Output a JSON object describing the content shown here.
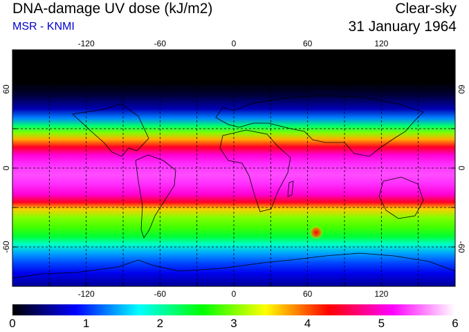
{
  "header": {
    "title": "DNA-damage UV dose (kJ/m2)",
    "credit": "MSR - KNMI",
    "condition": "Clear-sky",
    "date": "31 January 1964"
  },
  "map": {
    "projection": "equirectangular",
    "lon_range": [
      -180,
      180
    ],
    "lat_range": [
      -90,
      90
    ],
    "grid_lon": [
      -150,
      -120,
      -90,
      -60,
      -30,
      0,
      30,
      60,
      90,
      120,
      150
    ],
    "grid_lat": [
      -60,
      -30,
      0,
      30,
      60
    ],
    "lon_tick_labels": [
      "-120",
      "-60",
      "0",
      "60",
      "120"
    ],
    "lat_tick_labels": [
      "60",
      "0",
      "-60"
    ],
    "hotspot": {
      "lon": 67,
      "lat": -49,
      "value": 4.5
    },
    "zonal_profile": [
      {
        "lat": 90,
        "value": 0.0
      },
      {
        "lat": 65,
        "value": 0.0
      },
      {
        "lat": 55,
        "value": 0.2
      },
      {
        "lat": 45,
        "value": 0.6
      },
      {
        "lat": 38,
        "value": 1.3
      },
      {
        "lat": 32,
        "value": 2.2
      },
      {
        "lat": 27,
        "value": 3.0
      },
      {
        "lat": 22,
        "value": 3.7
      },
      {
        "lat": 16,
        "value": 4.4
      },
      {
        "lat": 10,
        "value": 5.0
      },
      {
        "lat": 3,
        "value": 5.3
      },
      {
        "lat": -5,
        "value": 5.4
      },
      {
        "lat": -12,
        "value": 5.3
      },
      {
        "lat": -20,
        "value": 5.0
      },
      {
        "lat": -26,
        "value": 4.4
      },
      {
        "lat": -31,
        "value": 3.6
      },
      {
        "lat": -38,
        "value": 3.0
      },
      {
        "lat": -45,
        "value": 2.8
      },
      {
        "lat": -52,
        "value": 2.4
      },
      {
        "lat": -58,
        "value": 1.9
      },
      {
        "lat": -65,
        "value": 1.4
      },
      {
        "lat": -72,
        "value": 1.1
      },
      {
        "lat": -80,
        "value": 0.8
      },
      {
        "lat": -90,
        "value": 0.5
      }
    ]
  },
  "colorbar": {
    "min": 0,
    "max": 6,
    "labels": [
      "0",
      "1",
      "2",
      "3",
      "4",
      "5",
      "6"
    ],
    "colors": [
      "#000000",
      "#0000ff",
      "#00ffff",
      "#00ff00",
      "#ffff00",
      "#ff0000",
      "#ff00ff",
      "#ffffff"
    ]
  }
}
